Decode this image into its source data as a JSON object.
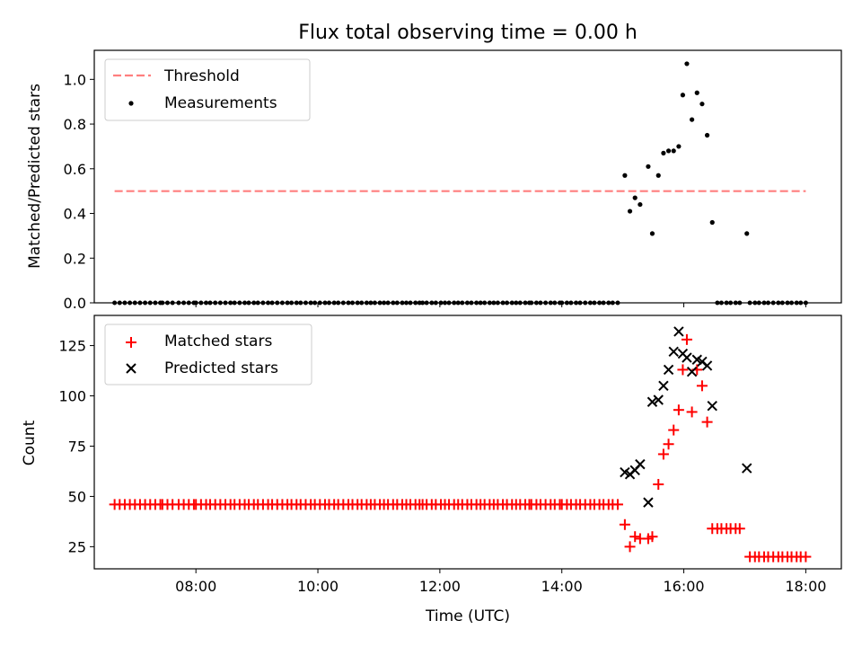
{
  "figure_title": "Flux total observing time = 0.00 h",
  "chart_data": [
    {
      "type": "scatter",
      "ylabel": "Matched/Predicted stars",
      "xlim": [
        "06:20",
        "18:35"
      ],
      "ylim": [
        0,
        1.13
      ],
      "yticks": [
        "0.0",
        "0.2",
        "0.4",
        "0.6",
        "0.8",
        "1.0"
      ],
      "threshold": {
        "name": "Threshold",
        "value": 0.5,
        "x_start": "06:40",
        "x_end": "18:00",
        "color": "#ff7f7f"
      },
      "legend": {
        "position": "upper-left",
        "entries": [
          "Threshold",
          "Measurements"
        ]
      },
      "series": [
        {
          "name": "Measurements",
          "color": "#000000",
          "zero_runs": [
            [
              "06:40",
              "07:25",
              10
            ],
            [
              "07:27",
              "07:58",
              7
            ],
            [
              "08:00",
              "08:48",
              11
            ],
            [
              "08:52",
              "09:20",
              7
            ],
            [
              "09:25",
              "10:25",
              14
            ],
            [
              "10:30",
              "11:40",
              17
            ],
            [
              "11:43",
              "13:28",
              25
            ],
            [
              "13:30",
              "13:58",
              7
            ],
            [
              "14:00",
              "14:55",
              13
            ],
            [
              "16:33",
              "16:55",
              6
            ],
            [
              "17:05",
              "18:00",
              13
            ]
          ],
          "points": [
            [
              "15:02",
              0.57
            ],
            [
              "15:07",
              0.41
            ],
            [
              "15:12",
              0.47
            ],
            [
              "15:17",
              0.44
            ],
            [
              "15:25",
              0.61
            ],
            [
              "15:29",
              0.31
            ],
            [
              "15:35",
              0.57
            ],
            [
              "15:40",
              0.67
            ],
            [
              "15:45",
              0.68
            ],
            [
              "15:50",
              0.68
            ],
            [
              "15:55",
              0.7
            ],
            [
              "15:59",
              0.93
            ],
            [
              "16:03",
              1.07
            ],
            [
              "16:08",
              0.82
            ],
            [
              "16:13",
              0.94
            ],
            [
              "16:18",
              0.89
            ],
            [
              "16:23",
              0.75
            ],
            [
              "16:28",
              0.36
            ],
            [
              "17:02",
              0.31
            ]
          ]
        }
      ]
    },
    {
      "type": "scatter",
      "xlabel": "Time (UTC)",
      "ylabel": "Count",
      "xlim": [
        "06:20",
        "18:35"
      ],
      "ylim": [
        14,
        140
      ],
      "xticks": [
        "08:00",
        "10:00",
        "12:00",
        "14:00",
        "16:00",
        "18:00"
      ],
      "yticks": [
        "25",
        "50",
        "75",
        "100",
        "125"
      ],
      "legend": {
        "position": "upper-left",
        "entries": [
          "Matched stars",
          "Predicted stars"
        ]
      },
      "series": [
        {
          "name": "Matched stars",
          "marker": "plus",
          "color": "#ff0000",
          "runs": [
            [
              "06:40",
              "07:25",
              10,
              46
            ],
            [
              "07:27",
              "07:58",
              7,
              46
            ],
            [
              "08:00",
              "08:48",
              11,
              46
            ],
            [
              "08:52",
              "09:20",
              7,
              46
            ],
            [
              "09:25",
              "10:25",
              14,
              46
            ],
            [
              "10:30",
              "11:40",
              17,
              46
            ],
            [
              "11:43",
              "13:28",
              25,
              46
            ],
            [
              "13:30",
              "13:58",
              7,
              46
            ],
            [
              "14:00",
              "14:55",
              13,
              46
            ],
            [
              "16:33",
              "16:55",
              6,
              34
            ],
            [
              "17:05",
              "18:00",
              13,
              20
            ]
          ],
          "points": [
            [
              "15:02",
              36
            ],
            [
              "15:07",
              25
            ],
            [
              "15:12",
              30
            ],
            [
              "15:17",
              29
            ],
            [
              "15:25",
              29
            ],
            [
              "15:29",
              30
            ],
            [
              "15:35",
              56
            ],
            [
              "15:40",
              71
            ],
            [
              "15:45",
              76
            ],
            [
              "15:50",
              83
            ],
            [
              "15:55",
              93
            ],
            [
              "15:59",
              113
            ],
            [
              "16:03",
              128
            ],
            [
              "16:08",
              92
            ],
            [
              "16:13",
              113
            ],
            [
              "16:18",
              105
            ],
            [
              "16:23",
              87
            ],
            [
              "16:28",
              34
            ]
          ]
        },
        {
          "name": "Predicted stars",
          "marker": "x",
          "color": "#000000",
          "points": [
            [
              "15:02",
              62
            ],
            [
              "15:07",
              61
            ],
            [
              "15:12",
              63
            ],
            [
              "15:17",
              66
            ],
            [
              "15:25",
              47
            ],
            [
              "15:29",
              97
            ],
            [
              "15:35",
              98
            ],
            [
              "15:40",
              105
            ],
            [
              "15:45",
              113
            ],
            [
              "15:50",
              122
            ],
            [
              "15:55",
              132
            ],
            [
              "15:59",
              121
            ],
            [
              "16:03",
              119
            ],
            [
              "16:08",
              112
            ],
            [
              "16:13",
              118
            ],
            [
              "16:18",
              117
            ],
            [
              "16:23",
              115
            ],
            [
              "16:28",
              95
            ],
            [
              "17:02",
              64
            ]
          ]
        }
      ]
    }
  ]
}
